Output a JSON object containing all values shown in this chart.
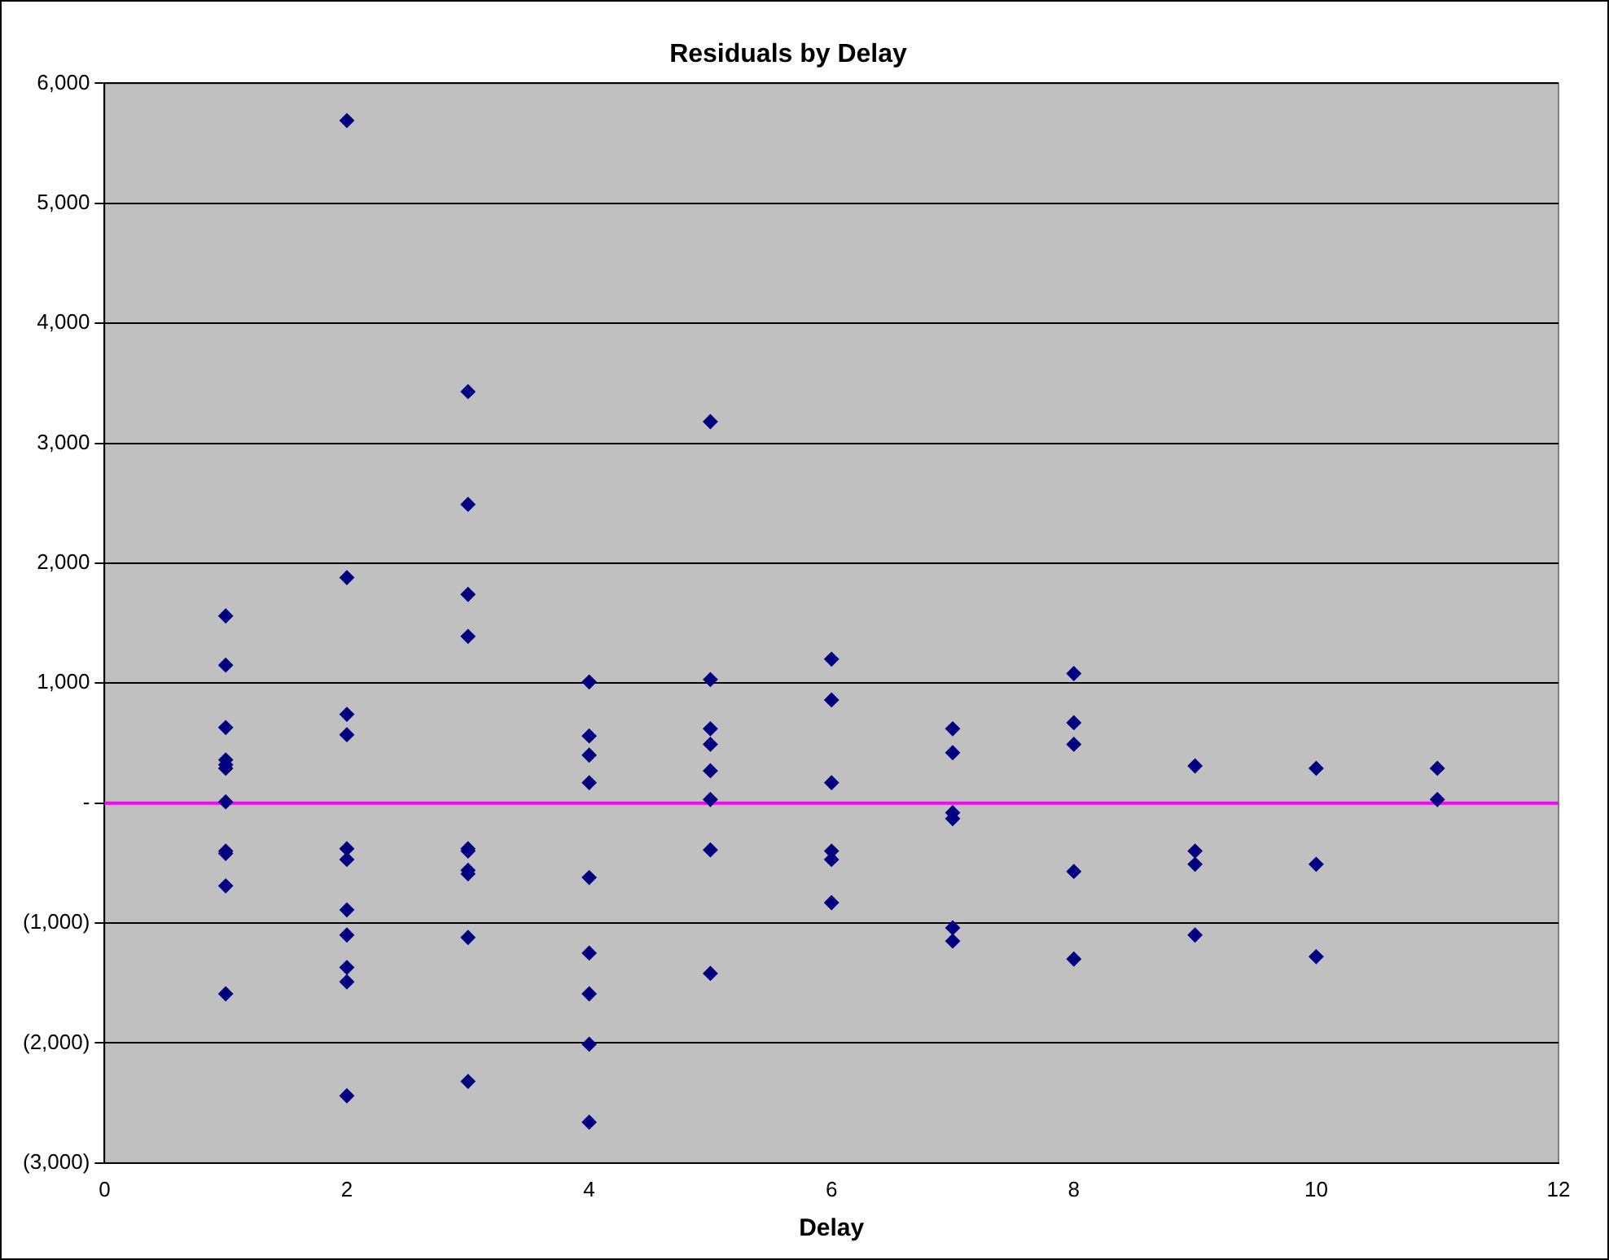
{
  "chart_data": {
    "type": "scatter",
    "title": "Residuals by Delay",
    "xlabel": "Delay",
    "series": [
      {
        "color": "#000080",
        "x": [
          1,
          1,
          1,
          1,
          1,
          1,
          1,
          1,
          1,
          1,
          1,
          2,
          2,
          2,
          2,
          2,
          2,
          2,
          2,
          2,
          2,
          2,
          3,
          3,
          3,
          3,
          3,
          3,
          3,
          3,
          3,
          3,
          4,
          4,
          4,
          4,
          4,
          4,
          4,
          4,
          4,
          5,
          5,
          5,
          5,
          5,
          5,
          5,
          5,
          6,
          6,
          6,
          6,
          6,
          6,
          7,
          7,
          7,
          7,
          7,
          7,
          8,
          8,
          8,
          8,
          8,
          9,
          9,
          9,
          9,
          10,
          10,
          10,
          11,
          11
        ],
        "values": [
          1560,
          1150,
          630,
          360,
          320,
          290,
          10,
          -400,
          -420,
          -690,
          -1590,
          5690,
          1880,
          740,
          570,
          -380,
          -470,
          -890,
          -1100,
          -1370,
          -1490,
          -2440,
          3430,
          2490,
          1740,
          1390,
          -380,
          -400,
          -560,
          -590,
          -1120,
          -2320,
          1010,
          560,
          400,
          170,
          -620,
          -1250,
          -1590,
          -2010,
          -2660,
          3180,
          1030,
          620,
          490,
          270,
          30,
          -390,
          -1420,
          1200,
          860,
          170,
          -400,
          -470,
          -830,
          620,
          420,
          -80,
          -130,
          -1040,
          -1150,
          1080,
          670,
          490,
          -570,
          -1300,
          310,
          -400,
          -510,
          -1100,
          290,
          -510,
          -1280,
          290,
          30
        ]
      }
    ],
    "xlim": [
      0,
      12
    ],
    "xticks": [
      0,
      2,
      4,
      6,
      8,
      10,
      12
    ],
    "ylim": [
      -3000,
      6000
    ],
    "yticks": [
      {
        "value": -3000,
        "label": "(3,000)"
      },
      {
        "value": -2000,
        "label": "(2,000)"
      },
      {
        "value": -1000,
        "label": "(1,000)"
      },
      {
        "value": 0,
        "label": "-"
      },
      {
        "value": 1000,
        "label": "1,000"
      },
      {
        "value": 2000,
        "label": "2,000"
      },
      {
        "value": 3000,
        "label": "3,000"
      },
      {
        "value": 4000,
        "label": "4,000"
      },
      {
        "value": 5000,
        "label": "5,000"
      },
      {
        "value": 6000,
        "label": "6,000"
      }
    ],
    "ref_lines": [
      {
        "axis": "y",
        "value": 0,
        "color": "#ff00ff"
      }
    ],
    "grid": "y",
    "marker": "diamond",
    "legend": false
  }
}
